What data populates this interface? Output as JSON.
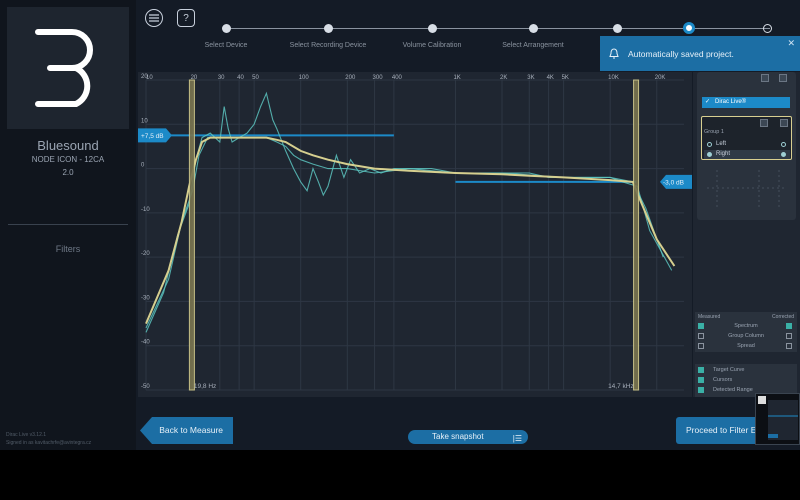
{
  "device": {
    "name": "Bluesound",
    "model": "NODE ICON - 12CA",
    "version": "2.0"
  },
  "sidebar": {
    "filters_label": "Filters",
    "app_version": "Dirac Live v3.12.1",
    "signed_in": "Signed in as kavitachrfe@avintegra.cz"
  },
  "header": {
    "menu_icon": "menu-icon",
    "help_label": "?"
  },
  "steps": [
    {
      "label": "Select Device",
      "state": "done"
    },
    {
      "label": "Select Recording Device",
      "state": "done"
    },
    {
      "label": "Volume Calibration",
      "state": "done"
    },
    {
      "label": "Select Arrangement",
      "state": "done"
    },
    {
      "label": "",
      "state": "done"
    },
    {
      "label": "",
      "state": "current"
    },
    {
      "label": "",
      "state": "todo"
    }
  ],
  "toast": {
    "text": "Automatically saved project.",
    "close": "✕"
  },
  "chart_data": {
    "type": "line",
    "x_scale": "log",
    "xlim": [
      10,
      30000
    ],
    "ylim": [
      -50,
      20
    ],
    "x_ticks": [
      10,
      20,
      30,
      40,
      50,
      100,
      200,
      300,
      400,
      1000,
      2000,
      3000,
      4000,
      5000,
      10000,
      20000
    ],
    "x_tick_labels": [
      "10",
      "20",
      "30",
      "40",
      "50",
      "100",
      "200",
      "300",
      "400",
      "1K",
      "2K",
      "3K",
      "4K",
      "5K",
      "10K",
      "20K"
    ],
    "y_ticks": [
      20,
      10,
      0,
      -10,
      -20,
      -30,
      -40,
      -50
    ],
    "y_tick_labels": [
      "20",
      "10",
      "0",
      "-10",
      "-20",
      "-30",
      "-40",
      "-50"
    ],
    "cursor_low_hz": 19.8,
    "cursor_high_hz": 14700,
    "cursor_low_label": "19,8 Hz",
    "cursor_high_label": "14,7 kHz",
    "target_low_label": "+7,5 dB",
    "target_high_label": "-3,0 dB",
    "target_low_db": 7.5,
    "target_high_db": -3.0,
    "grid": true,
    "series": [
      {
        "color": "#5cc4c0",
        "points": [
          [
            10,
            -37
          ],
          [
            13,
            -28
          ],
          [
            16,
            -15
          ],
          [
            19,
            -8
          ],
          [
            21,
            2
          ],
          [
            23,
            7
          ],
          [
            26,
            8
          ],
          [
            30,
            6
          ],
          [
            32,
            14
          ],
          [
            34,
            9
          ],
          [
            36,
            6
          ],
          [
            40,
            7
          ],
          [
            45,
            8
          ],
          [
            50,
            10
          ],
          [
            55,
            14
          ],
          [
            60,
            17
          ],
          [
            66,
            11
          ],
          [
            70,
            9
          ],
          [
            80,
            4
          ],
          [
            90,
            0
          ],
          [
            100,
            -3
          ],
          [
            110,
            -5
          ],
          [
            120,
            0
          ],
          [
            130,
            -3
          ],
          [
            140,
            -6
          ],
          [
            150,
            -4
          ],
          [
            170,
            3
          ],
          [
            190,
            -2
          ],
          [
            210,
            2
          ],
          [
            240,
            -1
          ],
          [
            280,
            0
          ],
          [
            330,
            -1
          ],
          [
            400,
            0
          ],
          [
            500,
            0
          ],
          [
            700,
            0
          ],
          [
            1000,
            -1
          ],
          [
            1500,
            -1
          ],
          [
            2000,
            -1
          ],
          [
            3000,
            -1
          ],
          [
            4000,
            -2
          ],
          [
            5000,
            -2
          ],
          [
            7000,
            -2
          ],
          [
            10000,
            -2
          ],
          [
            12000,
            -3
          ],
          [
            15000,
            -4
          ],
          [
            18000,
            -14
          ],
          [
            25000,
            -23
          ]
        ]
      },
      {
        "color": "#5cc4c0",
        "points": [
          [
            10,
            -36
          ],
          [
            14,
            -25
          ],
          [
            17,
            -12
          ],
          [
            20,
            -5
          ],
          [
            22,
            3
          ],
          [
            25,
            7
          ],
          [
            30,
            7
          ],
          [
            40,
            7
          ],
          [
            50,
            7
          ],
          [
            60,
            7
          ],
          [
            70,
            6
          ],
          [
            80,
            5
          ],
          [
            90,
            3
          ],
          [
            100,
            2
          ],
          [
            120,
            1
          ],
          [
            150,
            0
          ],
          [
            200,
            0
          ],
          [
            300,
            -1
          ],
          [
            500,
            0
          ],
          [
            1000,
            -1
          ],
          [
            2000,
            -1
          ],
          [
            5000,
            -2
          ],
          [
            10000,
            -2
          ],
          [
            14000,
            -3
          ],
          [
            17000,
            -9
          ],
          [
            22000,
            -20
          ]
        ]
      },
      {
        "color": "#d6cf8f",
        "points": [
          [
            10,
            -35
          ],
          [
            14,
            -23
          ],
          [
            17,
            -12
          ],
          [
            19,
            -4
          ],
          [
            21,
            2
          ],
          [
            23,
            6
          ],
          [
            26,
            7
          ],
          [
            30,
            7
          ],
          [
            40,
            7
          ],
          [
            50,
            7
          ],
          [
            60,
            7
          ],
          [
            70,
            6.5
          ],
          [
            80,
            6
          ],
          [
            100,
            4
          ],
          [
            120,
            3
          ],
          [
            150,
            2
          ],
          [
            200,
            1
          ],
          [
            300,
            0
          ],
          [
            500,
            -0.5
          ],
          [
            1000,
            -1
          ],
          [
            2000,
            -1.3
          ],
          [
            3000,
            -1.6
          ],
          [
            5000,
            -2
          ],
          [
            10000,
            -2.6
          ],
          [
            14000,
            -3
          ],
          [
            16000,
            -8
          ],
          [
            20000,
            -16
          ],
          [
            26000,
            -22
          ]
        ]
      }
    ]
  },
  "right_panel": {
    "dirac_live": "Dirac Live®",
    "group_label": "Group 1",
    "channels": [
      "Left",
      "Right"
    ],
    "measured_label": "Measured",
    "corrected_label": "Corrected",
    "options": [
      {
        "label": "Spectrum",
        "measured": true,
        "corrected": true
      },
      {
        "label": "Group Column",
        "measured": false,
        "corrected": false
      },
      {
        "label": "Spread",
        "measured": false,
        "corrected": false
      }
    ],
    "display": [
      {
        "label": "Target Curve",
        "checked": true
      },
      {
        "label": "Cursors",
        "checked": true
      },
      {
        "label": "Detected Range",
        "checked": true
      }
    ]
  },
  "bottom": {
    "back": "Back to Measure",
    "snapshot": "Take snapshot",
    "proceed": "Proceed to Filter E..."
  }
}
